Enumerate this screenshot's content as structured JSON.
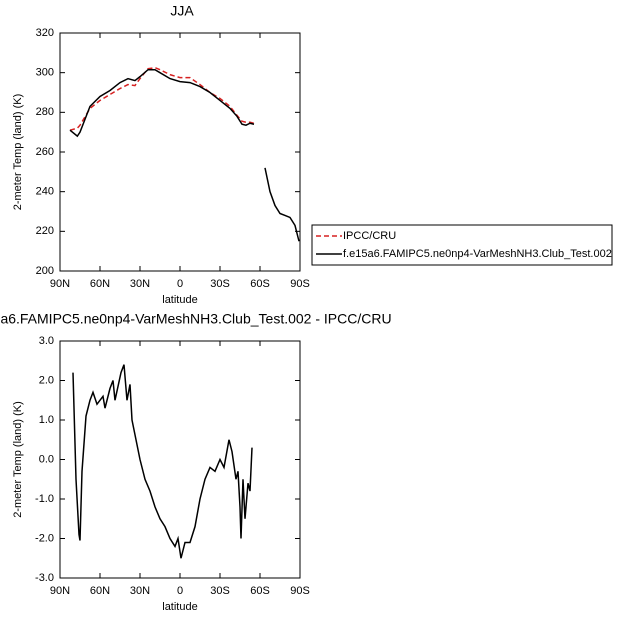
{
  "chart_data": [
    {
      "type": "line",
      "title": "JJA",
      "x_label": "latitude",
      "y_label": "2-meter Temp (land) (K)",
      "x": [
        82.5,
        77,
        75,
        67.5,
        60,
        52.5,
        45,
        39,
        33.75,
        30,
        24,
        18.75,
        15,
        7.5,
        0,
        -7.5,
        -15,
        -22.5,
        -30,
        -37.5,
        -42.75,
        -46.5,
        -49.5,
        -52.5,
        -55.5,
        -60,
        -63.75,
        -67.5,
        -71.25,
        -75,
        -78.75,
        -82.5,
        -86.25,
        -89.25
      ],
      "series": [
        {
          "name": "IPCC/CRU",
          "color": "#d62020",
          "dash": true,
          "values": [
            271,
            272,
            273.5,
            282,
            286,
            289,
            292,
            294,
            293.5,
            297,
            302,
            302.5,
            301.5,
            299,
            297.5,
            297.5,
            294,
            290,
            287,
            283,
            278.5,
            275.5,
            275,
            275,
            274.5,
            null,
            null,
            null,
            null,
            null,
            null,
            null,
            null,
            null
          ]
        },
        {
          "name": "f.e15a6.FAMIPC5.ne0np4-VarMeshNH3.Club_Test.002",
          "color": "#000000",
          "dash": false,
          "values": [
            271,
            268,
            270,
            283,
            288,
            291,
            295,
            297,
            296,
            298,
            301.5,
            301.5,
            300,
            297,
            295.5,
            295,
            293,
            290,
            286,
            282,
            278,
            274,
            273.5,
            274.5,
            274,
            null,
            252,
            240,
            233,
            229,
            228,
            227,
            223,
            215
          ]
        }
      ],
      "xlim": [
        90,
        -90
      ],
      "xticks": [
        {
          "value": 90,
          "label": "90N"
        },
        {
          "value": 60,
          "label": "60N"
        },
        {
          "value": 30,
          "label": "30N"
        },
        0,
        {
          "value": -30,
          "label": "30S"
        },
        {
          "value": -60,
          "label": "60S"
        },
        {
          "value": -90,
          "label": "90S"
        }
      ],
      "ylim": [
        200,
        320
      ],
      "yticks": [
        200,
        220,
        240,
        260,
        280,
        300,
        320
      ],
      "legend": "right",
      "grid": false
    },
    {
      "type": "line",
      "title": "a6.FAMIPC5.ne0np4-VarMeshNH3.Club_Test.002 - IPCC/CRU",
      "x_label": "latitude",
      "y_label": "2-meter Temp (land) (K)",
      "x": [
        80.25,
        78,
        75.75,
        75,
        73.5,
        70.5,
        67.5,
        65.25,
        62.25,
        57.75,
        56.25,
        52.5,
        50.25,
        48.75,
        44.25,
        42,
        39.75,
        37.5,
        36,
        33,
        30,
        26.25,
        22.5,
        18.75,
        15,
        11.25,
        7.5,
        3.75,
        1.5,
        -0.75,
        -3.75,
        -7.5,
        -11.25,
        -15,
        -18.75,
        -22.5,
        -26.25,
        -30,
        -33,
        -36.75,
        -39,
        -42,
        -43.5,
        -45,
        -45.75,
        -47.25,
        -48.75,
        -51,
        -52.5,
        -54
      ],
      "series": [
        {
          "color": "#000000",
          "dash": false,
          "values": [
            2.2,
            -0.5,
            -1.9,
            -2.05,
            -0.3,
            1.1,
            1.5,
            1.7,
            1.4,
            1.6,
            1.3,
            1.8,
            2.0,
            1.5,
            2.2,
            2.4,
            1.5,
            1.9,
            1.0,
            0.5,
            0.0,
            -0.5,
            -0.8,
            -1.2,
            -1.5,
            -1.7,
            -2.0,
            -2.2,
            -2.0,
            -2.5,
            -2.1,
            -2.1,
            -1.7,
            -1.0,
            -0.5,
            -0.2,
            -0.3,
            0.0,
            -0.2,
            0.5,
            0.2,
            -0.5,
            -0.3,
            -1.2,
            -2.0,
            -0.5,
            -1.5,
            -0.6,
            -0.8,
            0.3
          ]
        }
      ],
      "xlim": [
        90,
        -90
      ],
      "xticks": [
        {
          "value": 90,
          "label": "90N"
        },
        {
          "value": 60,
          "label": "60N"
        },
        {
          "value": 30,
          "label": "30N"
        },
        0,
        {
          "value": -30,
          "label": "30S"
        },
        {
          "value": -60,
          "label": "60S"
        },
        {
          "value": -90,
          "label": "90S"
        }
      ],
      "ylim": [
        -3,
        3
      ],
      "yticks": [
        {
          "value": -3,
          "label": "-3.0"
        },
        {
          "value": -2,
          "label": "-2.0"
        },
        {
          "value": -1,
          "label": "-1.0"
        },
        {
          "value": 0,
          "label": "0.0"
        },
        {
          "value": 1,
          "label": "1.0"
        },
        {
          "value": 2,
          "label": "2.0"
        },
        {
          "value": 3,
          "label": "3.0"
        }
      ],
      "grid": false
    }
  ]
}
